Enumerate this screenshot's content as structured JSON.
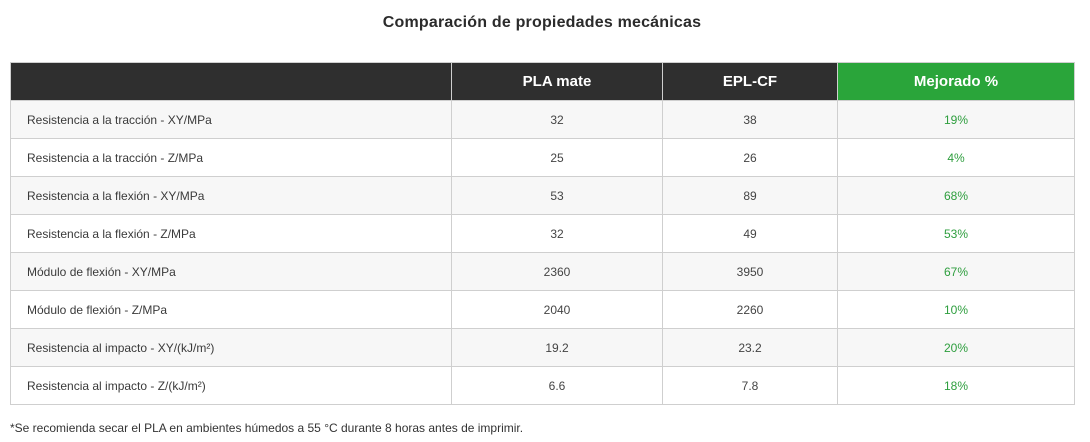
{
  "title": "Comparación de propiedades mecánicas",
  "table": {
    "headers": [
      "",
      "PLA mate",
      "EPL-CF",
      "Mejorado %"
    ],
    "rows": [
      {
        "label": "Resistencia a la tracción - XY/MPa",
        "pla": "32",
        "eplcf": "38",
        "improved": "19%"
      },
      {
        "label": "Resistencia a la tracción - Z/MPa",
        "pla": "25",
        "eplcf": "26",
        "improved": "4%"
      },
      {
        "label": "Resistencia a la flexión - XY/MPa",
        "pla": "53",
        "eplcf": "89",
        "improved": "68%"
      },
      {
        "label": "Resistencia a la flexión - Z/MPa",
        "pla": "32",
        "eplcf": "49",
        "improved": "53%"
      },
      {
        "label": "Módulo de flexión - XY/MPa",
        "pla": "2360",
        "eplcf": "3950",
        "improved": "67%"
      },
      {
        "label": "Módulo de flexión - Z/MPa",
        "pla": "2040",
        "eplcf": "2260",
        "improved": "10%"
      },
      {
        "label": "Resistencia al impacto - XY/(kJ/m²)",
        "pla": "19.2",
        "eplcf": "23.2",
        "improved": "20%"
      },
      {
        "label": "Resistencia al impacto - Z/(kJ/m²)",
        "pla": "6.6",
        "eplcf": "7.8",
        "improved": "18%"
      }
    ]
  },
  "footnote": "*Se recomienda secar el PLA en ambientes húmedos a 55 °C durante 8 horas antes de imprimir.",
  "colors": {
    "header_bg": "#2f2f2f",
    "highlight_header_bg": "#2aa53a",
    "improvement_text": "#2e9e3e"
  }
}
